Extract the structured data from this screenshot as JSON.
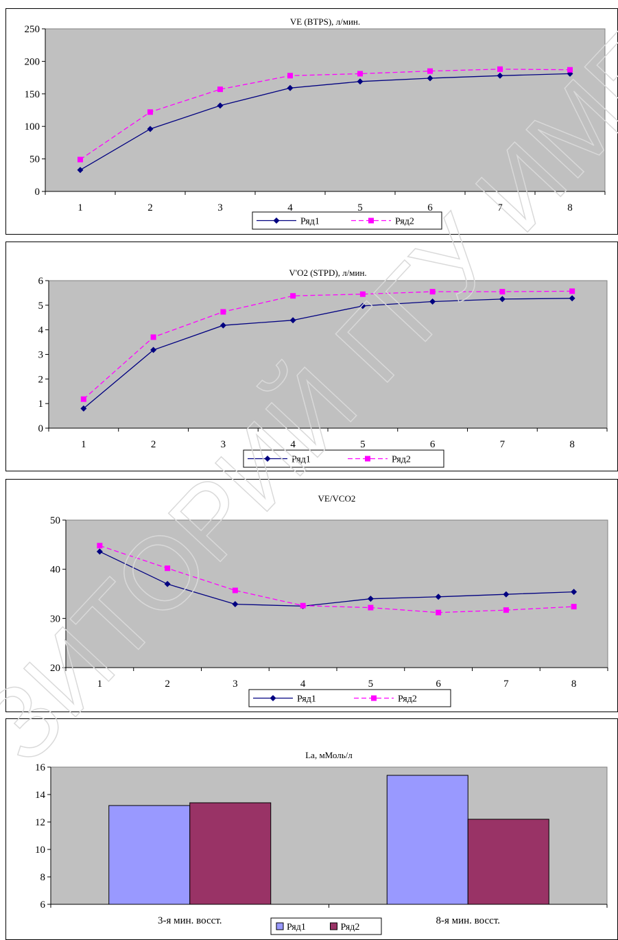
{
  "colors": {
    "series1_line": "#000080",
    "series2_line": "#ff00ff",
    "plot_bg": "#c0c0c0",
    "bar1": "#9999ff",
    "bar2": "#993366",
    "watermark": "#d9d9d9"
  },
  "watermark_text": "ЗИТОРИЙ ГГУ ИМЕНИ Ф.СКО",
  "chart_data": [
    {
      "type": "line",
      "title": "VE (BTPS), л/мин.",
      "categories": [
        "1",
        "2",
        "3",
        "4",
        "5",
        "6",
        "7",
        "8"
      ],
      "ylim": [
        0,
        250
      ],
      "yticks": [
        "0",
        "50",
        "100",
        "150",
        "200",
        "250"
      ],
      "series": [
        {
          "name": "Ряд1",
          "values": [
            33,
            96,
            132,
            159,
            169,
            174,
            178,
            181
          ]
        },
        {
          "name": "Ряд2",
          "values": [
            49,
            122,
            157,
            178,
            181,
            185,
            188,
            187
          ]
        }
      ],
      "legend": "bottom",
      "grid": false
    },
    {
      "type": "line",
      "title": "V'O2 (STPD), л/мин.",
      "categories": [
        "1",
        "2",
        "3",
        "4",
        "5",
        "6",
        "7",
        "8"
      ],
      "ylim": [
        0,
        6
      ],
      "yticks": [
        "0",
        "1",
        "2",
        "3",
        "4",
        "5",
        "6"
      ],
      "series": [
        {
          "name": "Ряд1",
          "values": [
            0.8,
            3.18,
            4.18,
            4.39,
            4.97,
            5.15,
            5.25,
            5.28
          ]
        },
        {
          "name": "Ряд2",
          "values": [
            1.18,
            3.7,
            4.73,
            5.38,
            5.45,
            5.55,
            5.55,
            5.57
          ]
        }
      ],
      "legend": "bottom",
      "grid": false
    },
    {
      "type": "line",
      "title": "VE/VCO2",
      "categories": [
        "1",
        "2",
        "3",
        "4",
        "5",
        "6",
        "7",
        "8"
      ],
      "ylim": [
        20,
        50
      ],
      "yticks": [
        "20",
        "30",
        "40",
        "50"
      ],
      "series": [
        {
          "name": "Ряд1",
          "values": [
            43.6,
            37.0,
            32.9,
            32.5,
            34.0,
            34.4,
            34.9,
            35.4
          ]
        },
        {
          "name": "Ряд2",
          "values": [
            44.8,
            40.2,
            35.7,
            32.6,
            32.2,
            31.2,
            31.7,
            32.4
          ]
        }
      ],
      "legend": "bottom",
      "grid": false
    },
    {
      "type": "bar",
      "title": "La, мМоль/л",
      "categories": [
        "3-я мин. восст.",
        "8-я мин. восст."
      ],
      "ylim": [
        6,
        16
      ],
      "yticks": [
        "6",
        "8",
        "10",
        "12",
        "14",
        "16"
      ],
      "series": [
        {
          "name": "Ряд1",
          "values": [
            13.2,
            15.4
          ]
        },
        {
          "name": "Ряд2",
          "values": [
            13.4,
            12.2
          ]
        }
      ],
      "legend": "bottom",
      "grid": false
    }
  ]
}
